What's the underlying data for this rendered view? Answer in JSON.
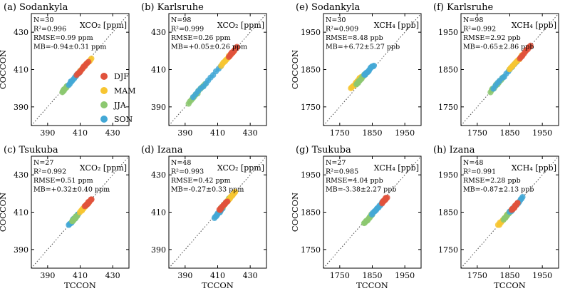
{
  "figure": {
    "x_label": "TCCON",
    "y_label": "COCCON"
  },
  "legend": [
    {
      "label": "DJF",
      "color": "#e0523c"
    },
    {
      "label": "MAM",
      "color": "#f7c531"
    },
    {
      "label": "JJA",
      "color": "#8cc870"
    },
    {
      "label": "SON",
      "color": "#43a8d6"
    }
  ],
  "chart_data": [
    {
      "type": "scatter",
      "title": "(a) Sodankyla",
      "species_label": "XCO₂ [ppm]",
      "stats": [
        "N=30",
        "R²=0.996",
        "RMSE=0.99 ppm",
        "MB=-0.94±0.31 ppm"
      ],
      "xlim": [
        380,
        440
      ],
      "ylim": [
        380,
        440
      ],
      "ticks": [
        390,
        410,
        430
      ],
      "clusters": [
        {
          "season": "JJA",
          "x": [
            399,
            402
          ],
          "y": [
            398,
            401
          ]
        },
        {
          "season": "SON",
          "x": [
            403,
            410
          ],
          "y": [
            402,
            409
          ]
        },
        {
          "season": "MAM",
          "x": [
            410,
            417
          ],
          "y": [
            409,
            416
          ]
        },
        {
          "season": "DJF",
          "x": [
            408,
            415
          ],
          "y": [
            407,
            414
          ]
        }
      ]
    },
    {
      "type": "scatter",
      "title": "(b) Karlsruhe",
      "species_label": "XCO₂ [ppm]",
      "stats": [
        "N=98",
        "R²=0.999",
        "RMSE=0.26 ppm",
        "MB=+0.05±0.26 ppm"
      ],
      "xlim": [
        380,
        440
      ],
      "ylim": [
        380,
        440
      ],
      "ticks": [
        390,
        410,
        430
      ],
      "clusters": [
        {
          "season": "JJA",
          "x": [
            392,
            402
          ],
          "y": [
            392,
            402
          ]
        },
        {
          "season": "SON",
          "x": [
            395,
            412
          ],
          "y": [
            395,
            412
          ]
        },
        {
          "season": "MAM",
          "x": [
            412,
            420
          ],
          "y": [
            412,
            420
          ]
        },
        {
          "season": "DJF",
          "x": [
            417,
            422
          ],
          "y": [
            417,
            422
          ]
        }
      ]
    },
    {
      "type": "scatter",
      "title": "(e) Sodankyla",
      "species_label": "XCH₄ [ppb]",
      "stats": [
        "N=30",
        "R²=0.909",
        "RMSE=8.48 ppb",
        "MB=+6.72±5.27 ppb"
      ],
      "xlim": [
        1700,
        2000
      ],
      "ylim": [
        1700,
        2000
      ],
      "ticks": [
        1750,
        1850,
        1950
      ],
      "clusters": [
        {
          "season": "MAM",
          "x": [
            1785,
            1815
          ],
          "y": [
            1800,
            1830
          ]
        },
        {
          "season": "JJA",
          "x": [
            1800,
            1830
          ],
          "y": [
            1810,
            1840
          ]
        },
        {
          "season": "SON",
          "x": [
            1825,
            1855
          ],
          "y": [
            1835,
            1862
          ]
        }
      ]
    },
    {
      "type": "scatter",
      "title": "(f) Karlsruhe",
      "species_label": "XCH₄ [ppb]",
      "stats": [
        "N=98",
        "R²=0.992",
        "RMSE=2.92 ppb",
        "MB=-0.65±2.86 ppb"
      ],
      "xlim": [
        1700,
        2000
      ],
      "ylim": [
        1700,
        2000
      ],
      "ticks": [
        1750,
        1850,
        1950
      ],
      "clusters": [
        {
          "season": "JJA",
          "x": [
            1790,
            1830
          ],
          "y": [
            1790,
            1830
          ]
        },
        {
          "season": "SON",
          "x": [
            1800,
            1870
          ],
          "y": [
            1800,
            1870
          ]
        },
        {
          "season": "MAM",
          "x": [
            1850,
            1890
          ],
          "y": [
            1850,
            1890
          ]
        },
        {
          "season": "DJF",
          "x": [
            1880,
            1915
          ],
          "y": [
            1880,
            1915
          ]
        }
      ]
    },
    {
      "type": "scatter",
      "title": "(c) Tsukuba",
      "species_label": "XCO₂ [ppm]",
      "stats": [
        "N=27",
        "R²=0.992",
        "RMSE=0.51 ppm",
        "MB=+0.32±0.40 ppm"
      ],
      "xlim": [
        380,
        440
      ],
      "ylim": [
        380,
        440
      ],
      "ticks": [
        390,
        410,
        430
      ],
      "clusters": [
        {
          "season": "SON",
          "x": [
            403,
            409
          ],
          "y": [
            403,
            409
          ]
        },
        {
          "season": "JJA",
          "x": [
            405,
            408
          ],
          "y": [
            405,
            408
          ]
        },
        {
          "season": "MAM",
          "x": [
            410,
            415
          ],
          "y": [
            410,
            415
          ]
        },
        {
          "season": "DJF",
          "x": [
            413,
            417
          ],
          "y": [
            413,
            417
          ]
        }
      ]
    },
    {
      "type": "scatter",
      "title": "(d) Izana",
      "species_label": "XCO₂ [ppm]",
      "stats": [
        "N=48",
        "R²=0.993",
        "RMSE=0.42 ppm",
        "MB=-0.27±0.33 ppm"
      ],
      "xlim": [
        380,
        440
      ],
      "ylim": [
        380,
        440
      ],
      "ticks": [
        390,
        410,
        430
      ],
      "clusters": [
        {
          "season": "SON",
          "x": [
            408,
            413
          ],
          "y": [
            407,
            412
          ]
        },
        {
          "season": "JJA",
          "x": [
            412,
            418
          ],
          "y": [
            412,
            418
          ]
        },
        {
          "season": "MAM",
          "x": [
            416,
            421
          ],
          "y": [
            416,
            421
          ]
        },
        {
          "season": "DJF",
          "x": [
            411,
            416
          ],
          "y": [
            411,
            416
          ]
        }
      ]
    },
    {
      "type": "scatter",
      "title": "(g) Tsukuba",
      "species_label": "XCH₄ [ppb]",
      "stats": [
        "N=27",
        "R²=0.985",
        "RMSE=4.04 ppb",
        "MB=-3.38±2.27 ppb"
      ],
      "xlim": [
        1700,
        2000
      ],
      "ylim": [
        1700,
        2000
      ],
      "ticks": [
        1750,
        1850,
        1950
      ],
      "clusters": [
        {
          "season": "JJA",
          "x": [
            1825,
            1850
          ],
          "y": [
            1820,
            1845
          ]
        },
        {
          "season": "SON",
          "x": [
            1850,
            1880
          ],
          "y": [
            1845,
            1875
          ]
        },
        {
          "season": "DJF",
          "x": [
            1880,
            1895
          ],
          "y": [
            1875,
            1890
          ]
        }
      ]
    },
    {
      "type": "scatter",
      "title": "(h) Izana",
      "species_label": "XCH₄ [ppb]",
      "stats": [
        "N=48",
        "R²=0.991",
        "RMSE=2.28 ppb",
        "MB=-0.87±2.13 ppb"
      ],
      "xlim": [
        1700,
        2000
      ],
      "ylim": [
        1700,
        2000
      ],
      "ticks": [
        1750,
        1850,
        1950
      ],
      "clusters": [
        {
          "season": "MAM",
          "x": [
            1815,
            1845
          ],
          "y": [
            1815,
            1845
          ]
        },
        {
          "season": "JJA",
          "x": [
            1830,
            1860
          ],
          "y": [
            1830,
            1860
          ]
        },
        {
          "season": "SON",
          "x": [
            1850,
            1890
          ],
          "y": [
            1850,
            1890
          ]
        },
        {
          "season": "DJF",
          "x": [
            1855,
            1875
          ],
          "y": [
            1855,
            1875
          ]
        }
      ]
    }
  ]
}
